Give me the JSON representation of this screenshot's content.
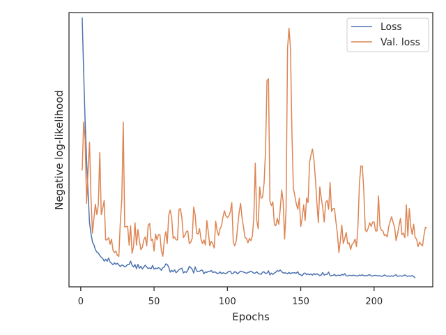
{
  "chart_data": {
    "type": "line",
    "title": "",
    "xlabel": "Epochs",
    "ylabel": "Negative log-likelihood",
    "xlim": [
      -8,
      240
    ],
    "ylim": [
      -8,
      360
    ],
    "x_ticks": [
      0,
      50,
      100,
      150,
      200
    ],
    "x_tick_labels": [
      "0",
      "50",
      "100",
      "150",
      "200"
    ],
    "y_ticks_shown": false,
    "grid": false,
    "legend": {
      "placement": "top-right",
      "entries": [
        "Loss",
        "Val. loss"
      ]
    },
    "x_start": 1,
    "x_step": 1,
    "series": [
      {
        "name": "Loss",
        "color": "#4c72b0",
        "values": [
          353.4,
          280.6,
          213.6,
          162.6,
          118.8,
          77.9,
          63.4,
          52.4,
          48.4,
          41.9,
          38.6,
          37.4,
          34.1,
          31.7,
          30.1,
          26.5,
          29.0,
          26.3,
          30.6,
          25.5,
          23.6,
          21.7,
          24.1,
          22.2,
          23.7,
          21.4,
          19.3,
          21.2,
          20.7,
          18.8,
          20.0,
          22.1,
          21.9,
          26.5,
          21.0,
          18.7,
          21.9,
          16.3,
          22.2,
          17.0,
          19.6,
          16.0,
          18.5,
          21.1,
          18.6,
          16.5,
          17.4,
          16.3,
          20.7,
          15.8,
          17.2,
          16.4,
          17.8,
          16.6,
          14.1,
          17.9,
          18.5,
          22.8,
          22.0,
          18.5,
          11.7,
          14.2,
          12.2,
          14.8,
          11.0,
          12.7,
          14.9,
          16.3,
          17.0,
          10.6,
          12.4,
          11.5,
          14.0,
          19.5,
          17.7,
          15.5,
          10.6,
          18.8,
          13.5,
          12.3,
          12.9,
          14.3,
          14.2,
          9.4,
          12.0,
          11.4,
          13.0,
          12.4,
          14.0,
          11.3,
          12.0,
          11.6,
          9.9,
          10.3,
          12.0,
          9.6,
          11.0,
          10.3,
          9.7,
          11.3,
          12.7,
          13.0,
          9.5,
          10.3,
          12.3,
          11.5,
          9.4,
          11.4,
          13.1,
          12.3,
          11.8,
          11.1,
          10.0,
          11.3,
          11.9,
          13.0,
          11.9,
          10.2,
          10.5,
          12.2,
          10.0,
          9.3,
          8.8,
          11.9,
          12.0,
          9.9,
          10.5,
          13.5,
          8.0,
          10.5,
          8.6,
          10.5,
          11.8,
          13.9,
          12.8,
          14.6,
          12.5,
          10.5,
          10.8,
          10.6,
          9.5,
          11.4,
          9.5,
          10.8,
          10.7,
          10.8,
          10.4,
          12.3,
          8.5,
          8.2,
          6.8,
          10.0,
          10.5,
          8.4,
          9.4,
          8.3,
          9.2,
          7.7,
          9.9,
          8.3,
          9.6,
          8.4,
          7.1,
          7.9,
          11.2,
          7.8,
          8.7,
          8.7,
          11.8,
          7.0,
          7.1,
          7.3,
          8.7,
          6.7,
          7.3,
          7.8,
          6.9,
          8.8,
          7.7,
          9.8,
          6.8,
          6.6,
          7.4,
          7.5,
          6.8,
          7.7,
          7.0,
          6.8,
          6.5,
          7.8,
          7.1,
          8.2,
          6.9,
          7.1,
          6.7,
          7.8,
          8.3,
          6.7,
          6.5,
          7.3,
          7.5,
          6.8,
          6.9,
          6.8,
          6.3,
          6.5,
          8.0,
          6.9,
          6.3,
          6.7,
          6.0,
          6.9,
          6.1,
          7.4,
          8.3,
          6.1,
          6.4,
          6.8,
          6.3,
          6.9,
          8.0,
          6.6,
          6.2,
          6.6,
          6.3,
          7.1,
          5.8,
          3.8
        ]
      },
      {
        "name": "Val. loss",
        "color": "#dd8452",
        "values": [
          148,
          213,
          190,
          104,
          147,
          186,
          111,
          64,
          84,
          103,
          89,
          102,
          172,
          89,
          97,
          108,
          55,
          55,
          58,
          49,
          56,
          41,
          38,
          40,
          34,
          33,
          79,
          109,
          213,
          72,
          73,
          73,
          48,
          74,
          37,
          46,
          78,
          48,
          69,
          54,
          42,
          45,
          55,
          59,
          47,
          75,
          77,
          54,
          56,
          40,
          63,
          55,
          62,
          62,
          40,
          33,
          55,
          66,
          50,
          88,
          95,
          85,
          57,
          59,
          55,
          55,
          96,
          97,
          84,
          58,
          61,
          66,
          67,
          50,
          52,
          57,
          99,
          89,
          64,
          63,
          70,
          56,
          50,
          55,
          48,
          81,
          65,
          47,
          53,
          50,
          44,
          80,
          67,
          61,
          70,
          74,
          86,
          94,
          87,
          85,
          87,
          93,
          105,
          52,
          47,
          53,
          73,
          92,
          104,
          84,
          72,
          58,
          57,
          51,
          57,
          54,
          60,
          84,
          158,
          81,
          70,
          126,
          111,
          112,
          131,
          175,
          269,
          271,
          107,
          101,
          106,
          76,
          74,
          84,
          76,
          96,
          122,
          107,
          56,
          96,
          312,
          339,
          312,
          197,
          124,
          114,
          103,
          96,
          111,
          73,
          85,
          102,
          81,
          111,
          105,
          159,
          169,
          177,
          162,
          137,
          105,
          78,
          126,
          111,
          98,
          79,
          105,
          108,
          96,
          132,
          93,
          97,
          97,
          79,
          63,
          38,
          54,
          75,
          50,
          57,
          65,
          50,
          51,
          42,
          49,
          51,
          56,
          46,
          73,
          131,
          154,
          154,
          120,
          68,
          66,
          71,
          78,
          73,
          79,
          79,
          67,
          67,
          114,
          73,
          68,
          67,
          61,
          62,
          59,
          73,
          80,
          86,
          78,
          72,
          54,
          63,
          74,
          84,
          62,
          64,
          58,
          102,
          60,
          97,
          73,
          62,
          76,
          58,
          56,
          46,
          52,
          49,
          47,
          61,
          72,
          71
        ]
      }
    ]
  }
}
